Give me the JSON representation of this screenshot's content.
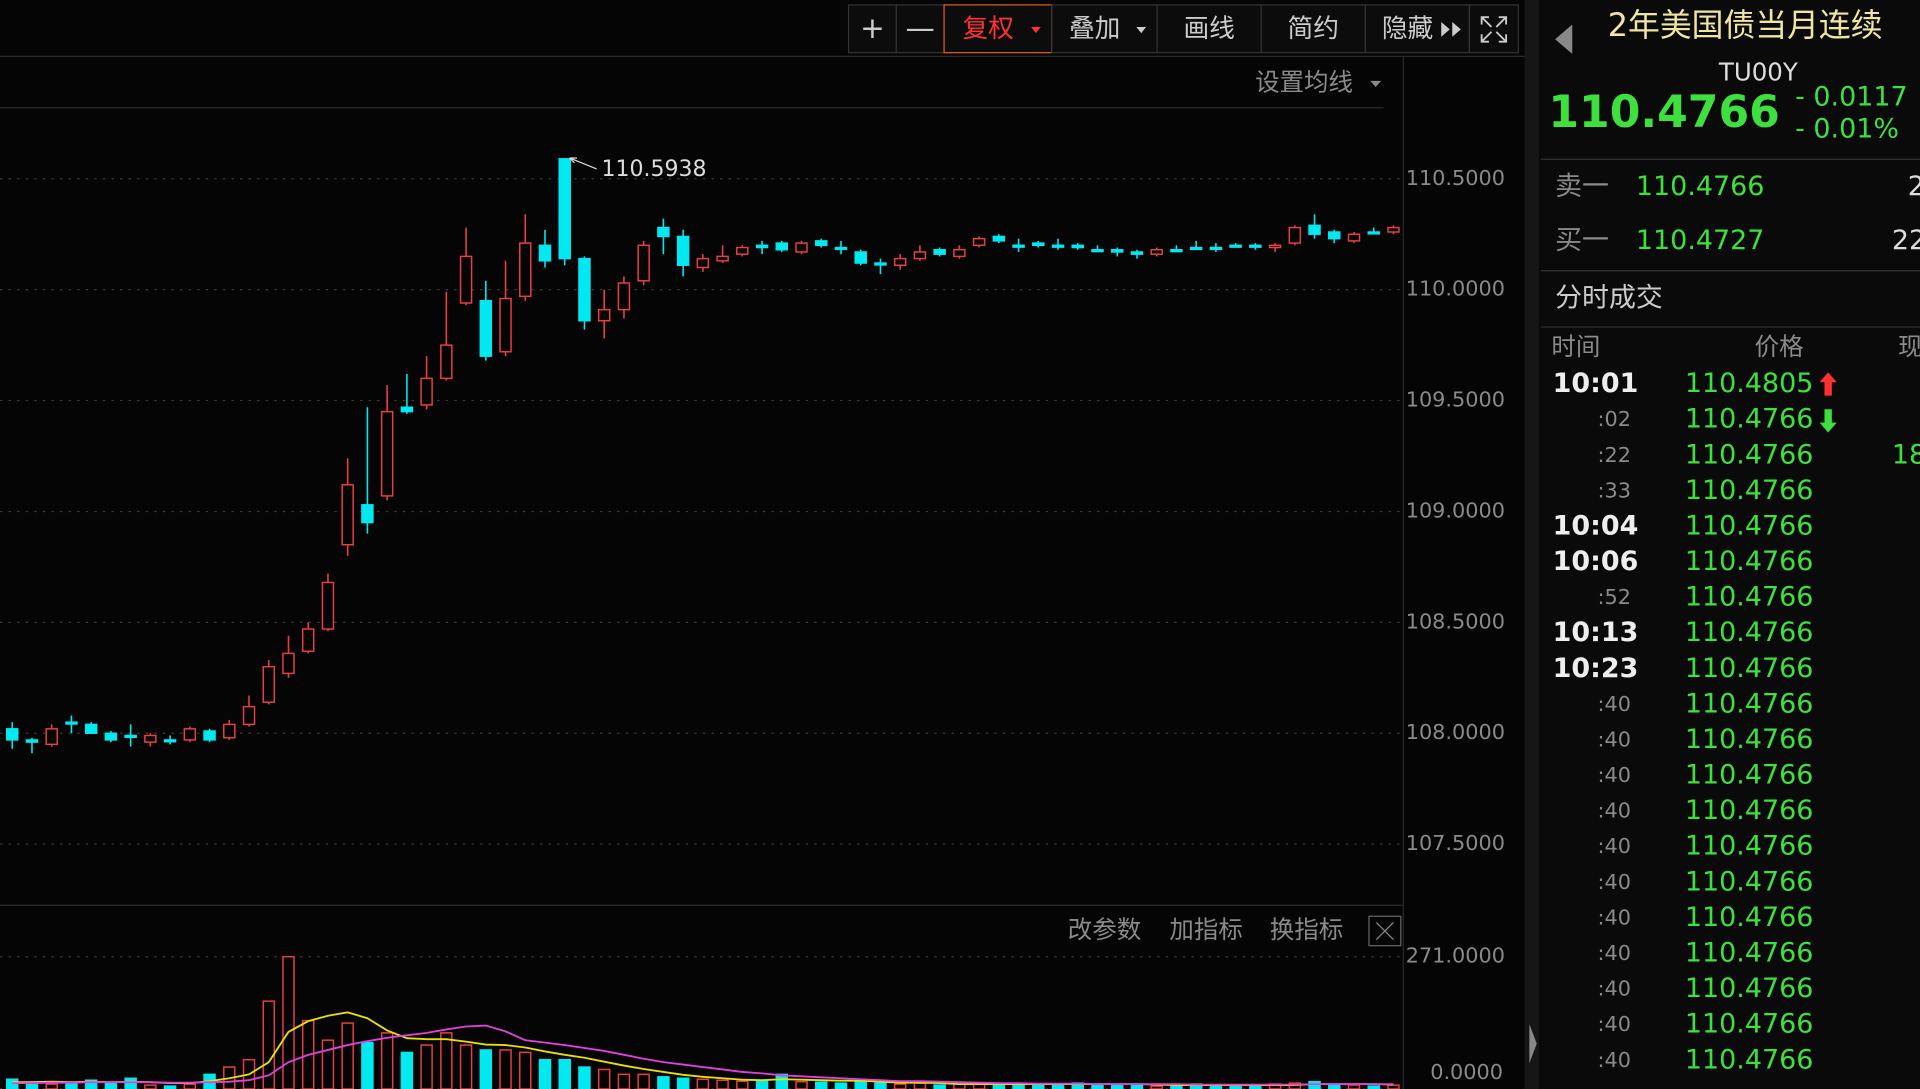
{
  "toolbar": {
    "buttons": [
      "+",
      "—",
      "复权",
      "叠加",
      "画线",
      "简约",
      "隐藏"
    ]
  },
  "chart_data": {
    "type": "candlestick",
    "ma_setting": "设置均线",
    "ylim": [
      107.23,
      110.82
    ],
    "yticks": [
      {
        "value": 110.5,
        "label": "110.5000"
      },
      {
        "value": 110,
        "label": "110.0000"
      },
      {
        "value": 109.5,
        "label": "109.5000"
      },
      {
        "value": 109,
        "label": "109.0000"
      },
      {
        "value": 108.5,
        "label": "108.5000"
      },
      {
        "value": 108,
        "label": "108.0000"
      },
      {
        "value": 107.5,
        "label": "107.5000"
      }
    ],
    "grid": true,
    "up_color": "#e84040",
    "down_color": "#00e8f0",
    "high_index": 28,
    "open": [
      108.02,
      107.97,
      107.95,
      108.05,
      108.04,
      108.0,
      107.99,
      107.96,
      107.97,
      107.97,
      108.01,
      107.98,
      108.04,
      108.14,
      108.27,
      108.37,
      108.47,
      108.85,
      109.03,
      109.07,
      109.47,
      109.48,
      109.6,
      109.94,
      109.95,
      109.72,
      109.97,
      110.2,
      110.59,
      110.14,
      109.86,
      109.91,
      110.04,
      110.28,
      110.24,
      110.1,
      110.13,
      110.16,
      110.2,
      110.21,
      110.17,
      110.22,
      110.19,
      110.17,
      110.12,
      110.11,
      110.14,
      110.18,
      110.15,
      110.2,
      110.24,
      110.2,
      110.21,
      110.2,
      110.2,
      110.18,
      110.18,
      110.17,
      110.16,
      110.18,
      110.19,
      110.19,
      110.2,
      110.2,
      110.19,
      110.21,
      110.29,
      110.26,
      110.22,
      110.26,
      110.26
    ],
    "high": [
      108.05,
      107.98,
      108.04,
      108.08,
      108.05,
      108.01,
      108.04,
      108.0,
      107.99,
      108.03,
      108.02,
      108.06,
      108.17,
      108.33,
      108.44,
      108.5,
      108.72,
      109.24,
      109.47,
      109.57,
      109.62,
      109.7,
      109.99,
      110.28,
      110.04,
      110.13,
      110.34,
      110.27,
      110.5938,
      110.15,
      110.0,
      110.06,
      110.22,
      110.32,
      110.27,
      110.16,
      110.2,
      110.2,
      110.22,
      110.22,
      110.22,
      110.23,
      110.22,
      110.18,
      110.14,
      110.16,
      110.2,
      110.19,
      110.2,
      110.24,
      110.25,
      110.23,
      110.22,
      110.23,
      110.21,
      110.2,
      110.19,
      110.18,
      110.19,
      110.2,
      110.22,
      110.21,
      110.21,
      110.21,
      110.21,
      110.29,
      110.34,
      110.27,
      110.26,
      110.28,
      110.29
    ],
    "low": [
      107.93,
      107.91,
      107.94,
      108.0,
      108.0,
      107.96,
      107.94,
      107.94,
      107.95,
      107.96,
      107.96,
      107.97,
      108.03,
      108.13,
      108.25,
      108.36,
      108.46,
      108.8,
      108.9,
      109.05,
      109.44,
      109.46,
      109.59,
      109.93,
      109.68,
      109.7,
      109.95,
      110.1,
      110.11,
      109.82,
      109.78,
      109.87,
      110.02,
      110.16,
      110.06,
      110.08,
      110.12,
      110.15,
      110.16,
      110.17,
      110.16,
      110.19,
      110.16,
      110.11,
      110.07,
      110.09,
      110.13,
      110.15,
      110.14,
      110.19,
      110.21,
      110.17,
      110.19,
      110.18,
      110.18,
      110.17,
      110.15,
      110.14,
      110.15,
      110.17,
      110.18,
      110.17,
      110.19,
      110.18,
      110.17,
      110.2,
      110.23,
      110.21,
      110.21,
      110.25,
      110.25
    ],
    "close": [
      107.97,
      107.96,
      108.02,
      108.05,
      108.0,
      107.97,
      107.99,
      107.99,
      107.97,
      108.02,
      107.97,
      108.04,
      108.12,
      108.3,
      108.36,
      108.47,
      108.68,
      109.12,
      108.95,
      109.45,
      109.45,
      109.6,
      109.75,
      110.15,
      109.7,
      109.96,
      110.21,
      110.13,
      110.14,
      109.86,
      109.91,
      110.03,
      110.2,
      110.24,
      110.11,
      110.14,
      110.15,
      110.19,
      110.19,
      110.18,
      110.21,
      110.2,
      110.19,
      110.12,
      110.12,
      110.14,
      110.17,
      110.16,
      110.18,
      110.23,
      110.22,
      110.2,
      110.2,
      110.2,
      110.19,
      110.18,
      110.17,
      110.16,
      110.18,
      110.18,
      110.19,
      110.19,
      110.2,
      110.2,
      110.2,
      110.28,
      110.25,
      110.23,
      110.25,
      110.26,
      110.28
    ],
    "volume": {
      "ylim": [
        0,
        271
      ],
      "yticks": [
        {
          "value": 271,
          "label": "271.0000"
        },
        {
          "value": 0,
          "label": "0.0000"
        }
      ],
      "buttons": [
        "改参数",
        "加指标",
        "换指标"
      ],
      "values": [
        20,
        14,
        10,
        12,
        18,
        12,
        22,
        8,
        6,
        10,
        30,
        45,
        60,
        180,
        271,
        140,
        100,
        135,
        95,
        115,
        75,
        90,
        115,
        90,
        80,
        80,
        75,
        60,
        60,
        45,
        40,
        30,
        30,
        25,
        22,
        20,
        18,
        16,
        18,
        30,
        15,
        14,
        12,
        16,
        12,
        10,
        12,
        8,
        10,
        12,
        10,
        8,
        10,
        8,
        12,
        8,
        10,
        8,
        6,
        8,
        10,
        6,
        8,
        6,
        10,
        12,
        15,
        10,
        8,
        6,
        8
      ],
      "ma": [
        {
          "color": "#e8e000",
          "values": [
            14,
            14,
            15,
            14,
            15,
            14,
            15,
            14,
            12,
            12,
            16,
            22,
            30,
            55,
            117,
            139,
            150,
            157,
            145,
            120,
            104,
            102,
            102,
            97,
            91,
            90,
            85,
            77,
            70,
            64,
            56,
            48,
            41,
            35,
            29,
            25,
            22,
            19,
            18,
            20,
            19,
            18,
            17,
            17,
            15,
            13,
            13,
            12,
            10,
            10,
            10,
            10,
            10,
            10,
            10,
            10,
            10,
            10,
            9,
            8,
            8,
            8,
            8,
            8,
            8,
            8,
            10,
            10,
            10,
            10,
            9
          ]
        },
        {
          "color": "#e040e0",
          "values": [
            12,
            12,
            13,
            13,
            14,
            14,
            14,
            14,
            13,
            13,
            14,
            15,
            18,
            28,
            55,
            70,
            80,
            90,
            98,
            105,
            110,
            115,
            122,
            128,
            130,
            118,
            100,
            95,
            90,
            84,
            78,
            70,
            62,
            55,
            50,
            45,
            40,
            35,
            32,
            28,
            26,
            24,
            22,
            20,
            18,
            16,
            16,
            15,
            14,
            13,
            12,
            12,
            11,
            11,
            11,
            10,
            10,
            10,
            10,
            10,
            9,
            9,
            9,
            9,
            9,
            9,
            10,
            10,
            10,
            10,
            10
          ]
        }
      ]
    }
  },
  "quote": {
    "title": "2年美国债当月连续",
    "code": "TU00Y",
    "price": "110.4766",
    "change": "- 0.0117",
    "change_pct": "- 0.01%",
    "ask": {
      "label": "卖一",
      "price": "110.4766",
      "volume": "2"
    },
    "bid": {
      "label": "买一",
      "price": "110.4727",
      "volume": "22"
    },
    "trades_title": "分时成交",
    "trades_header": [
      "时间",
      "价格",
      "现"
    ],
    "trades": [
      {
        "time": "10:01",
        "price": "110.4805",
        "arrow": "up"
      },
      {
        "time": ":02",
        "price": "110.4766",
        "arrow": "down"
      },
      {
        "time": ":22",
        "price": "110.4766",
        "volume": "18"
      },
      {
        "time": ":33",
        "price": "110.4766"
      },
      {
        "time": "10:04",
        "price": "110.4766"
      },
      {
        "time": "10:06",
        "price": "110.4766"
      },
      {
        "time": ":52",
        "price": "110.4766"
      },
      {
        "time": "10:13",
        "price": "110.4766"
      },
      {
        "time": "10:23",
        "price": "110.4766"
      },
      {
        "time": ":40",
        "price": "110.4766"
      },
      {
        "time": ":40",
        "price": "110.4766"
      },
      {
        "time": ":40",
        "price": "110.4766"
      },
      {
        "time": ":40",
        "price": "110.4766"
      },
      {
        "time": ":40",
        "price": "110.4766"
      },
      {
        "time": ":40",
        "price": "110.4766"
      },
      {
        "time": ":40",
        "price": "110.4766"
      },
      {
        "time": ":40",
        "price": "110.4766"
      },
      {
        "time": ":40",
        "price": "110.4766"
      },
      {
        "time": ":40",
        "price": "110.4766"
      },
      {
        "time": ":40",
        "price": "110.4766"
      }
    ]
  }
}
